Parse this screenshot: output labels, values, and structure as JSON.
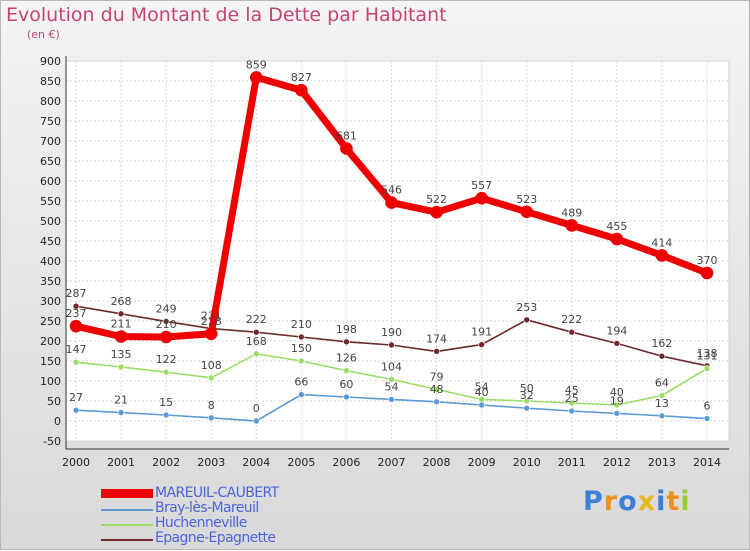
{
  "chart_data": {
    "type": "line",
    "title": "Evolution du Montant de la Dette par Habitant",
    "subtitle": "(en €)",
    "xlabel": "",
    "ylabel": "",
    "x": [
      "2000",
      "2001",
      "2002",
      "2003",
      "2004",
      "2005",
      "2006",
      "2007",
      "2008",
      "2009",
      "2010",
      "2011",
      "2012",
      "2013",
      "2014"
    ],
    "ylim": [
      -50,
      900
    ],
    "yticks": [
      -50,
      0,
      50,
      100,
      150,
      200,
      250,
      300,
      350,
      400,
      450,
      500,
      550,
      600,
      650,
      700,
      750,
      800,
      850,
      900
    ],
    "grid": true,
    "legend_position": "bottom-left",
    "series": [
      {
        "name": "MAREUIL-CAUBERT",
        "color": "#ee0000",
        "values": [
          237,
          211,
          210,
          218,
          859,
          827,
          681,
          546,
          522,
          557,
          523,
          489,
          455,
          414,
          370
        ]
      },
      {
        "name": "Bray-lès-Mareuil",
        "color": "#5b9bd5",
        "values": [
          27,
          21,
          15,
          8,
          0,
          66,
          60,
          54,
          48,
          40,
          32,
          25,
          19,
          13,
          6
        ]
      },
      {
        "name": "Huchenneville",
        "color": "#99dd66",
        "values": [
          147,
          135,
          122,
          108,
          168,
          150,
          126,
          104,
          79,
          54,
          50,
          45,
          40,
          64,
          131
        ]
      },
      {
        "name": "Epagne-Epagnette",
        "color": "#702929",
        "values": [
          287,
          268,
          249,
          231,
          222,
          210,
          198,
          190,
          174,
          191,
          253,
          222,
          194,
          162,
          138
        ]
      }
    ]
  },
  "logo": {
    "text": "Proxiti",
    "letters": [
      "P",
      "r",
      "o",
      "x",
      "i",
      "t",
      "i"
    ],
    "colors": [
      "#3d7fd8",
      "#ee8f1e",
      "#3d7fd8",
      "#e8b81f",
      "#3d7fd8",
      "#ee8f1e",
      "#99cc33"
    ]
  }
}
